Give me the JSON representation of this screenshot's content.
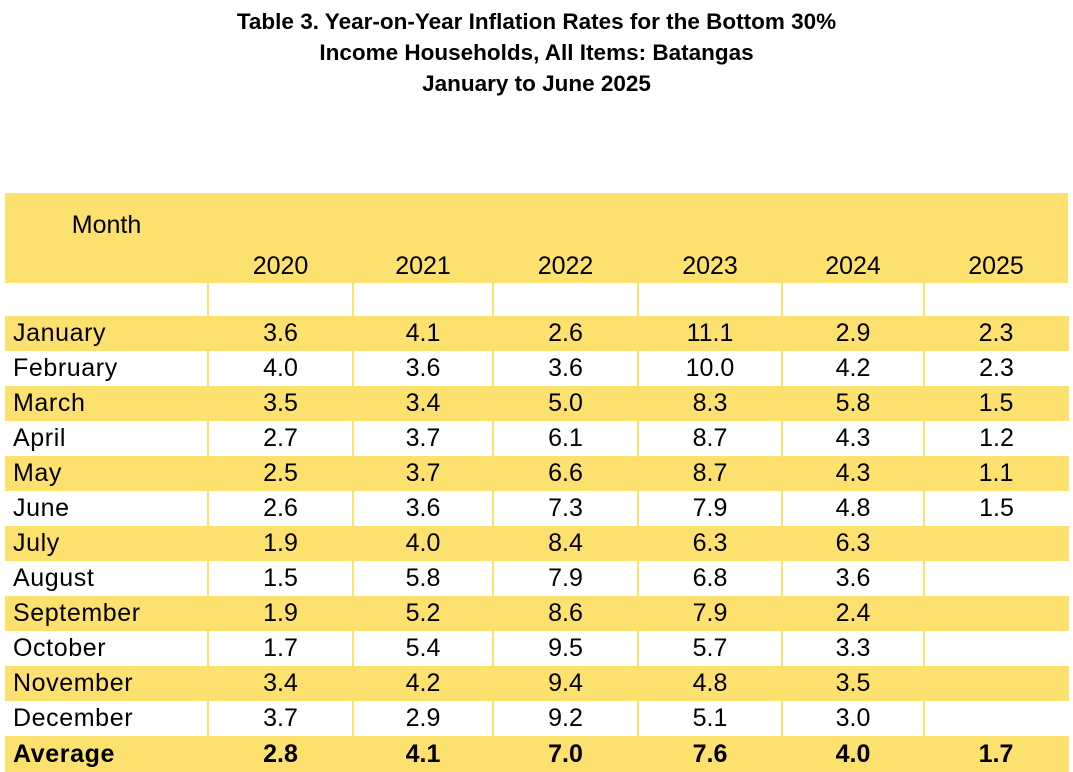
{
  "title": {
    "line1": "Table 3. Year-on-Year Inflation Rates for the Bottom 30%",
    "line2": "Income Households, All Items:  Batangas",
    "line3": "January to June 2025"
  },
  "header": {
    "month": "Month",
    "years": [
      "2020",
      "2021",
      "2022",
      "2023",
      "2024",
      "2025"
    ]
  },
  "rows": [
    {
      "month": "January",
      "v": [
        "3.6",
        "4.1",
        "2.6",
        "11.1",
        "2.9",
        "2.3"
      ]
    },
    {
      "month": "February",
      "v": [
        "4.0",
        "3.6",
        "3.6",
        "10.0",
        "4.2",
        "2.3"
      ]
    },
    {
      "month": "March",
      "v": [
        "3.5",
        "3.4",
        "5.0",
        "8.3",
        "5.8",
        "1.5"
      ]
    },
    {
      "month": "April",
      "v": [
        "2.7",
        "3.7",
        "6.1",
        "8.7",
        "4.3",
        "1.2"
      ]
    },
    {
      "month": "May",
      "v": [
        "2.5",
        "3.7",
        "6.6",
        "8.7",
        "4.3",
        "1.1"
      ]
    },
    {
      "month": "June",
      "v": [
        "2.6",
        "3.6",
        "7.3",
        "7.9",
        "4.8",
        "1.5"
      ]
    },
    {
      "month": "July",
      "v": [
        "1.9",
        "4.0",
        "8.4",
        "6.3",
        "6.3",
        ""
      ]
    },
    {
      "month": "August",
      "v": [
        "1.5",
        "5.8",
        "7.9",
        "6.8",
        "3.6",
        ""
      ]
    },
    {
      "month": "September",
      "v": [
        "1.9",
        "5.2",
        "8.6",
        "7.9",
        "2.4",
        ""
      ]
    },
    {
      "month": "October",
      "v": [
        "1.7",
        "5.4",
        "9.5",
        "5.7",
        "3.3",
        ""
      ]
    },
    {
      "month": "November",
      "v": [
        "3.4",
        "4.2",
        "9.4",
        "4.8",
        "3.5",
        ""
      ]
    },
    {
      "month": "December",
      "v": [
        "3.7",
        "2.9",
        "9.2",
        "5.1",
        "3.0",
        ""
      ]
    }
  ],
  "average": {
    "label": "Average",
    "v": [
      "2.8",
      "4.1",
      "7.0",
      "7.6",
      "4.0",
      "1.7"
    ]
  },
  "colors": {
    "row_highlight": "#fde16e",
    "row_plain": "#ffffff"
  }
}
